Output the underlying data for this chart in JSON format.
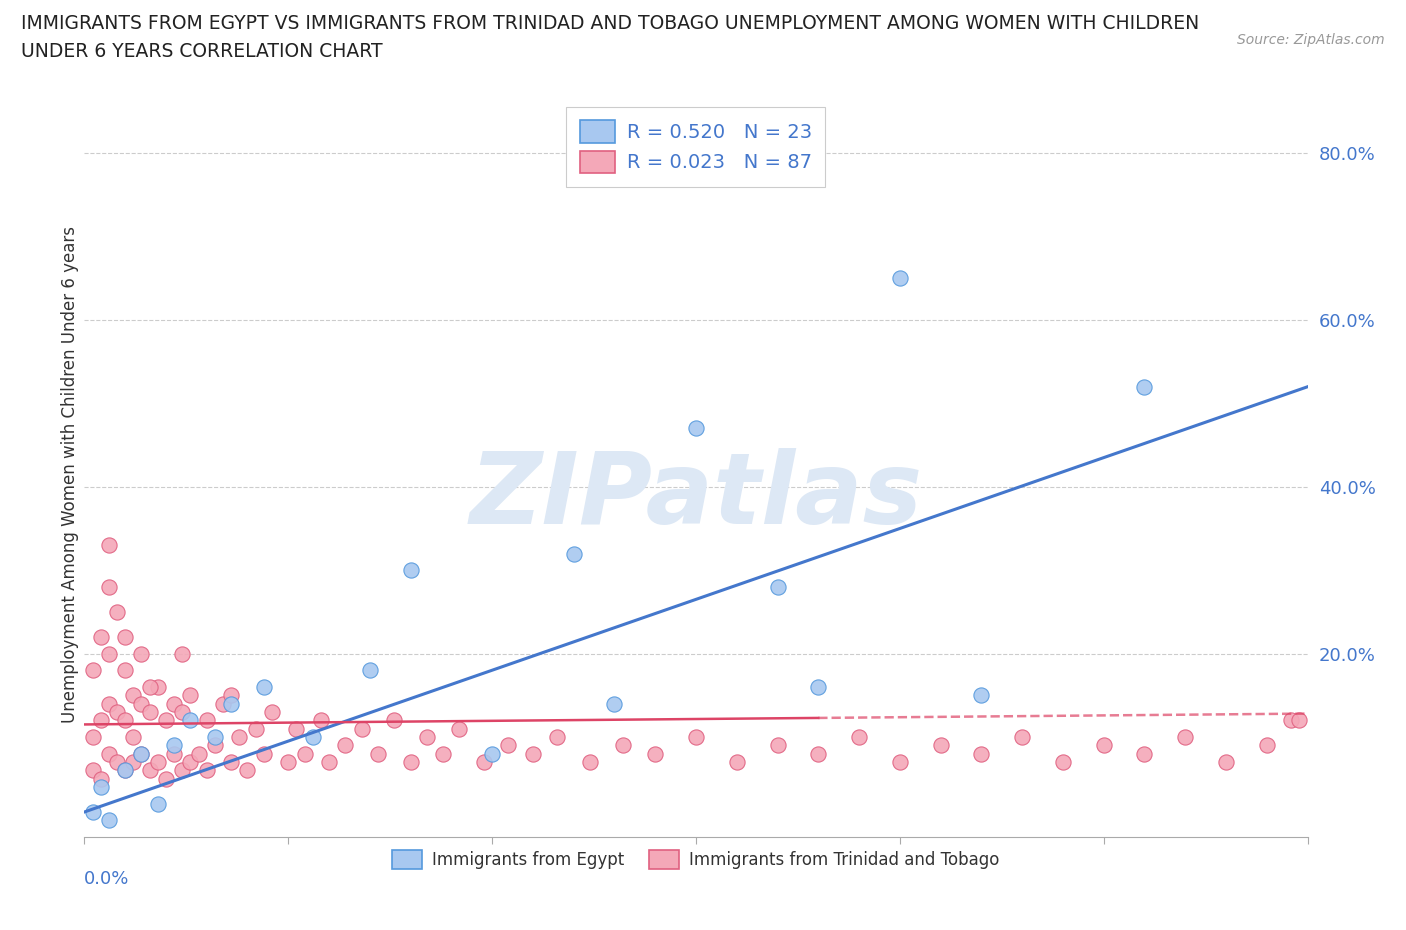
{
  "title_line1": "IMMIGRANTS FROM EGYPT VS IMMIGRANTS FROM TRINIDAD AND TOBAGO UNEMPLOYMENT AMONG WOMEN WITH CHILDREN",
  "title_line2": "UNDER 6 YEARS CORRELATION CHART",
  "source": "Source: ZipAtlas.com",
  "ylabel": "Unemployment Among Women with Children Under 6 years",
  "x_range": [
    0.0,
    0.15
  ],
  "y_range": [
    -0.02,
    0.85
  ],
  "legend1_r": "R = 0.520",
  "legend1_n": "N = 23",
  "legend2_r": "R = 0.023",
  "legend2_n": "N = 87",
  "color_egypt": "#a8c8f0",
  "color_egypt_edge": "#5599dd",
  "color_tt": "#f4a8b8",
  "color_tt_edge": "#e06080",
  "color_egypt_line": "#4477cc",
  "color_tt_line": "#dd4466",
  "watermark_color": "#dde8f5",
  "background_color": "#ffffff",
  "grid_color": "#cccccc",
  "ytick_vals": [
    0.2,
    0.4,
    0.6,
    0.8
  ],
  "ytick_labels": [
    "20.0%",
    "40.0%",
    "60.0%",
    "80.0%"
  ],
  "egypt_x": [
    0.001,
    0.002,
    0.003,
    0.005,
    0.007,
    0.009,
    0.011,
    0.013,
    0.016,
    0.018,
    0.022,
    0.028,
    0.035,
    0.04,
    0.05,
    0.06,
    0.065,
    0.075,
    0.085,
    0.09,
    0.1,
    0.11,
    0.13
  ],
  "egypt_y": [
    0.01,
    0.04,
    0.0,
    0.06,
    0.08,
    0.02,
    0.09,
    0.12,
    0.1,
    0.14,
    0.16,
    0.1,
    0.18,
    0.3,
    0.08,
    0.32,
    0.14,
    0.47,
    0.28,
    0.16,
    0.65,
    0.15,
    0.52
  ],
  "tt_x": [
    0.001,
    0.001,
    0.001,
    0.002,
    0.002,
    0.002,
    0.003,
    0.003,
    0.003,
    0.003,
    0.004,
    0.004,
    0.004,
    0.005,
    0.005,
    0.005,
    0.006,
    0.006,
    0.006,
    0.007,
    0.007,
    0.007,
    0.008,
    0.008,
    0.009,
    0.009,
    0.01,
    0.01,
    0.011,
    0.011,
    0.012,
    0.012,
    0.013,
    0.013,
    0.014,
    0.015,
    0.015,
    0.016,
    0.017,
    0.018,
    0.019,
    0.02,
    0.021,
    0.022,
    0.023,
    0.025,
    0.026,
    0.027,
    0.029,
    0.03,
    0.032,
    0.034,
    0.036,
    0.038,
    0.04,
    0.042,
    0.044,
    0.046,
    0.049,
    0.052,
    0.055,
    0.058,
    0.062,
    0.066,
    0.07,
    0.075,
    0.08,
    0.085,
    0.09,
    0.095,
    0.1,
    0.105,
    0.11,
    0.115,
    0.12,
    0.125,
    0.13,
    0.135,
    0.14,
    0.145,
    0.148,
    0.149,
    0.003,
    0.005,
    0.008,
    0.012,
    0.018
  ],
  "tt_y": [
    0.06,
    0.1,
    0.18,
    0.05,
    0.12,
    0.22,
    0.08,
    0.14,
    0.2,
    0.28,
    0.07,
    0.13,
    0.25,
    0.06,
    0.12,
    0.18,
    0.07,
    0.15,
    0.1,
    0.08,
    0.14,
    0.2,
    0.06,
    0.13,
    0.07,
    0.16,
    0.05,
    0.12,
    0.08,
    0.14,
    0.06,
    0.13,
    0.07,
    0.15,
    0.08,
    0.06,
    0.12,
    0.09,
    0.14,
    0.07,
    0.1,
    0.06,
    0.11,
    0.08,
    0.13,
    0.07,
    0.11,
    0.08,
    0.12,
    0.07,
    0.09,
    0.11,
    0.08,
    0.12,
    0.07,
    0.1,
    0.08,
    0.11,
    0.07,
    0.09,
    0.08,
    0.1,
    0.07,
    0.09,
    0.08,
    0.1,
    0.07,
    0.09,
    0.08,
    0.1,
    0.07,
    0.09,
    0.08,
    0.1,
    0.07,
    0.09,
    0.08,
    0.1,
    0.07,
    0.09,
    0.12,
    0.12,
    0.33,
    0.22,
    0.16,
    0.2,
    0.15
  ],
  "egypt_line_x0": 0.0,
  "egypt_line_y0": 0.01,
  "egypt_line_x1": 0.15,
  "egypt_line_y1": 0.52,
  "tt_line_x0": 0.0,
  "tt_line_y0": 0.115,
  "tt_line_x1": 0.15,
  "tt_line_y1": 0.128
}
